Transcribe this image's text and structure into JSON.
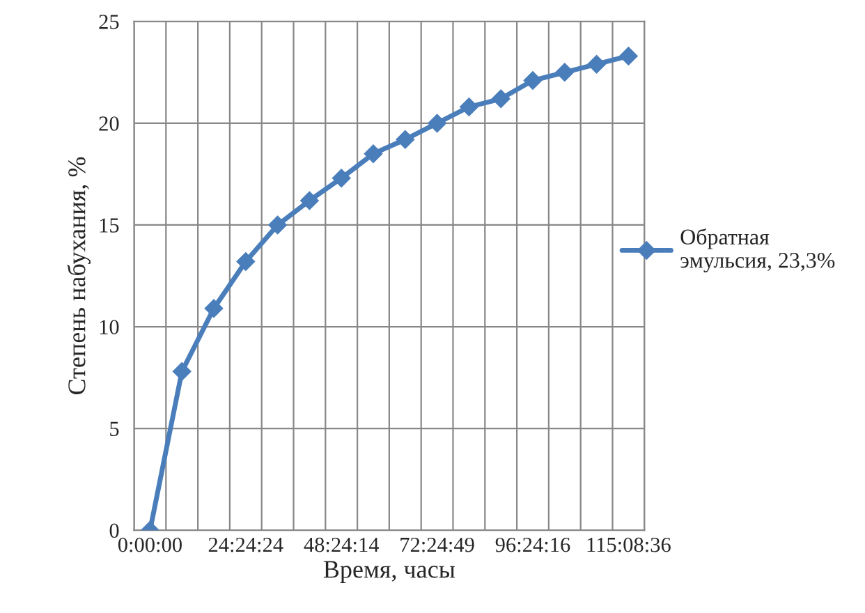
{
  "chart_data": {
    "type": "line",
    "xlabel": "Время, часы",
    "ylabel": "Степень набухания, %",
    "categories": [
      "0:00:00",
      null,
      null,
      "24:24:24",
      null,
      null,
      "48:24:14",
      null,
      null,
      "72:24:49",
      null,
      null,
      "96:24:16",
      null,
      null,
      "115:08:36"
    ],
    "series": [
      {
        "name": "Обратная эмульсия, 23,3%",
        "color": "#4a7ebb",
        "values": [
          0,
          7.8,
          10.9,
          13.2,
          15.0,
          16.2,
          17.3,
          18.5,
          19.2,
          20.0,
          20.8,
          21.2,
          22.1,
          22.5,
          22.9,
          23.3
        ]
      }
    ],
    "ylim": [
      0,
      25
    ],
    "yticks": [
      0,
      5,
      10,
      15,
      20,
      25
    ],
    "grid": true,
    "legend": "right",
    "marker": "diamond",
    "line_style": "solid"
  }
}
